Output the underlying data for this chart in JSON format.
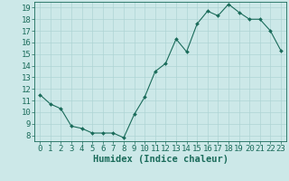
{
  "x": [
    0,
    1,
    2,
    3,
    4,
    5,
    6,
    7,
    8,
    9,
    10,
    11,
    12,
    13,
    14,
    15,
    16,
    17,
    18,
    19,
    20,
    21,
    22,
    23
  ],
  "y": [
    11.5,
    10.7,
    10.3,
    8.8,
    8.6,
    8.2,
    8.2,
    8.2,
    7.8,
    9.8,
    11.3,
    13.5,
    14.2,
    16.3,
    15.2,
    17.6,
    18.7,
    18.3,
    19.3,
    18.6,
    18.0,
    18.0,
    17.0,
    15.3
  ],
  "line_color": "#1a6b5a",
  "marker": "D",
  "marker_size": 2.0,
  "bg_color": "#cce8e8",
  "grid_color": "#aed4d4",
  "xlabel": "Humidex (Indice chaleur)",
  "xlim": [
    -0.5,
    23.5
  ],
  "ylim": [
    7.5,
    19.5
  ],
  "xticks": [
    0,
    1,
    2,
    3,
    4,
    5,
    6,
    7,
    8,
    9,
    10,
    11,
    12,
    13,
    14,
    15,
    16,
    17,
    18,
    19,
    20,
    21,
    22,
    23
  ],
  "yticks": [
    8,
    9,
    10,
    11,
    12,
    13,
    14,
    15,
    16,
    17,
    18,
    19
  ],
  "tick_label_color": "#1a6b5a",
  "axis_color": "#1a6b5a",
  "font_size": 6.5,
  "xlabel_font_size": 7.5
}
